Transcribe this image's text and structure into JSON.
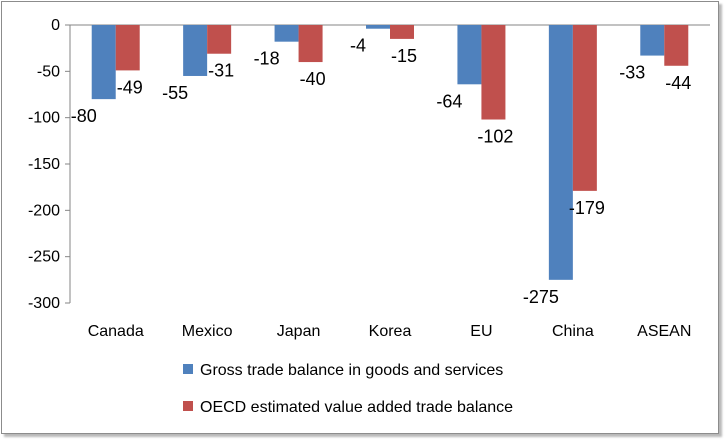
{
  "chart_data": {
    "type": "bar",
    "categories": [
      "Canada",
      "Mexico",
      "Japan",
      "Korea",
      "EU",
      "China",
      "ASEAN"
    ],
    "series": [
      {
        "name": "Gross trade balance in goods and services",
        "values": [
          -80,
          -55,
          -18,
          -4,
          -64,
          -275,
          -33
        ],
        "color": "#4f81bd"
      },
      {
        "name": "OECD estimated value added trade balance",
        "values": [
          -49,
          -31,
          -40,
          -15,
          -102,
          -179,
          -44
        ],
        "color": "#c0504d"
      }
    ],
    "ylim": [
      -300,
      0
    ],
    "yticks": [
      0,
      -50,
      -100,
      -150,
      -200,
      -250,
      -300
    ],
    "grid": false,
    "legend_position": "bottom",
    "title": "",
    "xlabel": "",
    "ylabel": ""
  }
}
